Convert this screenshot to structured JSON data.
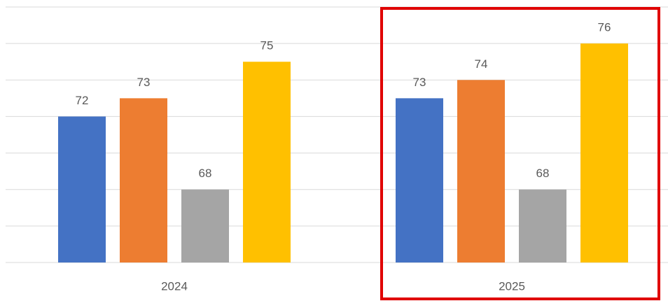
{
  "chart_data": {
    "type": "bar",
    "categories": [
      "2024",
      "2025"
    ],
    "series": [
      {
        "color": "#4472c4",
        "values": [
          72,
          73
        ]
      },
      {
        "color": "#ed7d31",
        "values": [
          73,
          74
        ]
      },
      {
        "color": "#a5a5a5",
        "values": [
          68,
          68
        ]
      },
      {
        "color": "#ffc000",
        "values": [
          75,
          76
        ]
      }
    ],
    "ylim": [
      64,
      78
    ],
    "yticks": [
      64,
      66,
      68,
      70,
      72,
      74,
      76,
      78
    ],
    "grid": true
  }
}
